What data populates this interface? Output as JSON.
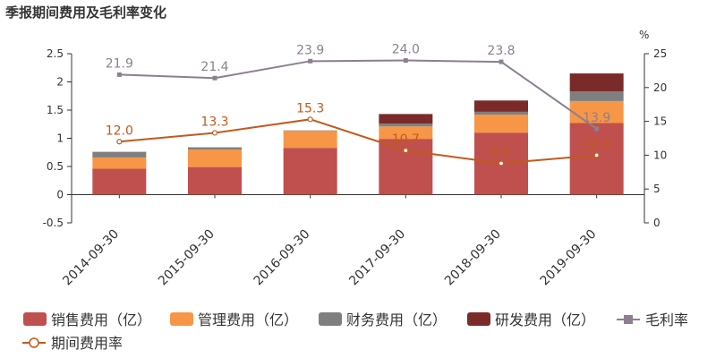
{
  "chart_data": {
    "type": "bar",
    "title": "季报期间费用及毛利率变化",
    "categories": [
      "2014-09-30",
      "2015-09-30",
      "2016-09-30",
      "2017-09-30",
      "2018-09-30",
      "2019-09-30"
    ],
    "stack": [
      {
        "name": "销售费用（亿）",
        "color": "#c0504d",
        "values": [
          0.46,
          0.49,
          0.83,
          0.99,
          1.1,
          1.27
        ]
      },
      {
        "name": "管理费用（亿）",
        "color": "#f79646",
        "values": [
          0.2,
          0.31,
          0.3,
          0.22,
          0.32,
          0.39
        ]
      },
      {
        "name": "财务费用（亿）",
        "color": "#7f7f7f",
        "values": [
          0.1,
          0.04,
          0.01,
          0.05,
          0.05,
          0.17
        ]
      },
      {
        "name": "研发费用（亿）",
        "color": "#7b2a2a",
        "values": [
          0.0,
          0.0,
          0.0,
          0.17,
          0.2,
          0.32
        ]
      }
    ],
    "lines": [
      {
        "name": "毛利率",
        "color": "#8d7f91",
        "marker": "square",
        "values": [
          21.9,
          21.4,
          23.9,
          24.0,
          23.8,
          13.9
        ],
        "labels": [
          "21.9",
          "21.4",
          "23.9",
          "24.0",
          "23.8",
          "13.9"
        ]
      },
      {
        "name": "期间费用率",
        "color": "#c25a1c",
        "marker": "circle",
        "values": [
          12.0,
          13.3,
          15.3,
          10.7,
          8.8,
          10.0
        ],
        "labels": [
          "12.0",
          "13.3",
          "15.3",
          "10.7",
          "8.8",
          "10.0"
        ]
      }
    ],
    "y_left": {
      "min": -0.5,
      "max": 2.5,
      "ticks": [
        "-0.5",
        "0",
        "0.5",
        "1",
        "1.5",
        "2",
        "2.5"
      ]
    },
    "y_right": {
      "min": 0,
      "max": 25,
      "ticks": [
        "0",
        "5",
        "10",
        "15",
        "20",
        "25"
      ],
      "unit": "%"
    },
    "legend_position": "bottom"
  }
}
